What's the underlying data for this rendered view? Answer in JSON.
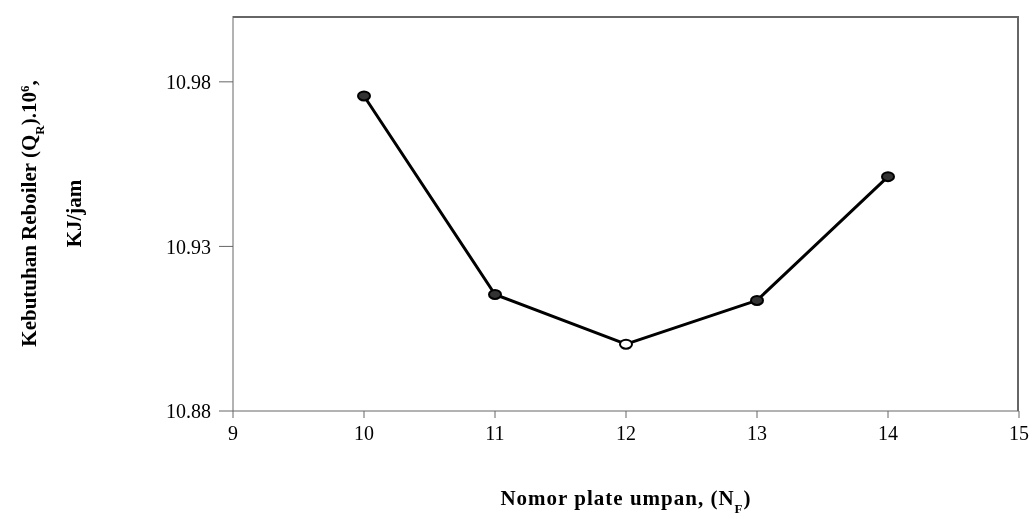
{
  "chart_data": {
    "type": "line",
    "xlabel": "Nomor plate umpan, (N$_{F}$)",
    "ylabel": "Kebutuhan Reboiler (Q$_{R}$).10$^{6}$, KJ/jam",
    "x": [
      10,
      11,
      12,
      13,
      14
    ],
    "series": [
      {
        "color": "#000000",
        "colors": [
          "#333333",
          "#333333",
          "#ffffff",
          "#333333",
          "#333333"
        ],
        "values": [
          10.9757,
          10.9154,
          10.9003,
          10.9136,
          10.9512
        ]
      }
    ],
    "xlim": [
      9,
      15
    ],
    "xticks": [
      9,
      10,
      11,
      12,
      13,
      14,
      15
    ],
    "ylim": [
      10.88,
      11.0
    ],
    "yticks": [
      10.88,
      10.93,
      10.98
    ],
    "grid": false,
    "legend": false,
    "marker": "circle",
    "line_style": "solid"
  }
}
